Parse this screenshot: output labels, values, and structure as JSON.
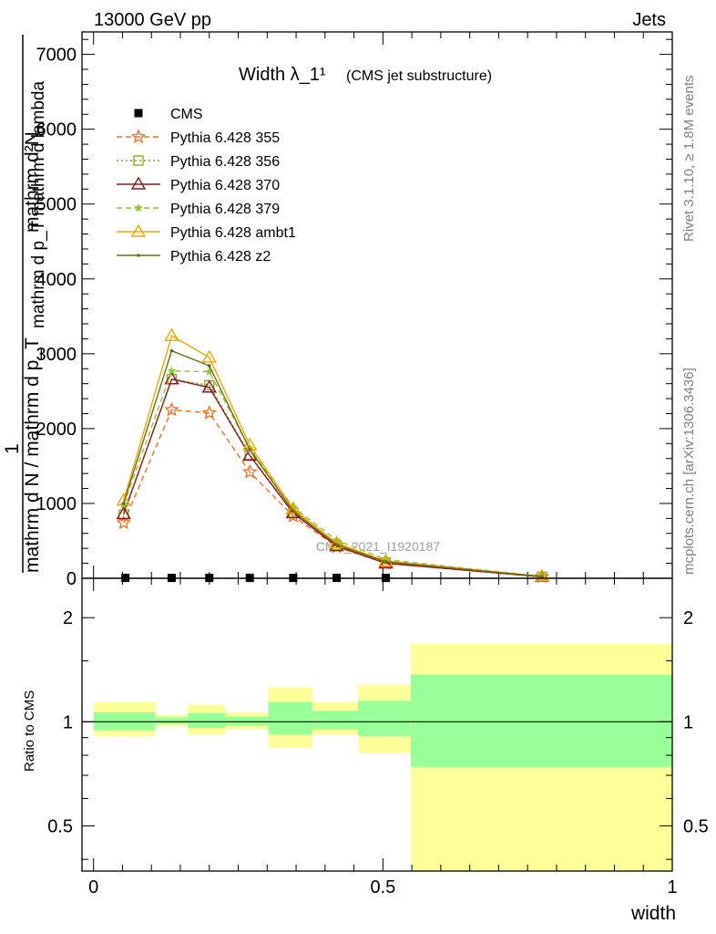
{
  "header": {
    "left": "13000 GeV pp",
    "right": "Jets"
  },
  "side_labels": {
    "rivet": "Rivet 3.1.10, ≥ 1.8M events",
    "mcplots": "mcplots.cern.ch [arXiv:1306.3436]"
  },
  "watermark": "CMS_2021_I1920187",
  "colors": {
    "cms": "#000000",
    "p355": "#f07020",
    "p356": "#8aa020",
    "p370": "#8b1a1a",
    "p379": "#8ac832",
    "ambt1": "#f0a800",
    "z2": "#6b6b10",
    "band_inner": "#99ff99",
    "band_outer": "#ffff99"
  },
  "chart_data": [
    {
      "type": "line",
      "title": "Width λ_1¹",
      "subtitle": "(CMS jet substructure)",
      "ylabel_top": "mathrm d²N",
      "ylabel_mid": "mathrm d p_T mathrm d lambda",
      "ylabel_one": "1",
      "ylabel_bot": "mathrm d N / mathrm d p_T",
      "ylim": [
        0,
        7300
      ],
      "yticks": [
        0,
        1000,
        2000,
        3000,
        4000,
        5000,
        6000,
        7000
      ],
      "ytick_labels": [
        "0",
        "1000",
        "2000",
        "3000",
        "4000",
        "5000",
        "6000",
        "7000"
      ],
      "xlim": [
        -0.02,
        1.0
      ],
      "legend_placement": "top-left",
      "series": [
        {
          "name": "CMS",
          "key": "cms",
          "marker": "square",
          "dash": "",
          "x": [
            0.055,
            0.135,
            0.2,
            0.27,
            0.345,
            0.42,
            0.505
          ],
          "y": [
            5,
            5,
            5,
            5,
            5,
            5,
            5
          ]
        },
        {
          "name": "Pythia 6.428 355",
          "key": "p355",
          "marker": "star-open",
          "dash": "6,4",
          "x": [
            0.052,
            0.135,
            0.2,
            0.27,
            0.345,
            0.42,
            0.505,
            0.775
          ],
          "y": [
            740,
            2250,
            2210,
            1420,
            830,
            420,
            200,
            20
          ]
        },
        {
          "name": "Pythia 6.428 356",
          "key": "p356",
          "marker": "square-open",
          "dash": "2,3",
          "x": [
            0.052,
            0.135,
            0.2,
            0.27,
            0.345,
            0.42,
            0.505,
            0.775
          ],
          "y": [
            850,
            2660,
            2580,
            1650,
            880,
            440,
            210,
            20
          ]
        },
        {
          "name": "Pythia 6.428 370",
          "key": "p370",
          "marker": "triangle-open",
          "dash": "",
          "x": [
            0.052,
            0.135,
            0.2,
            0.27,
            0.345,
            0.42,
            0.505,
            0.775
          ],
          "y": [
            860,
            2660,
            2550,
            1640,
            870,
            430,
            200,
            20
          ]
        },
        {
          "name": "Pythia 6.428 379",
          "key": "p379",
          "marker": "star",
          "dash": "6,4",
          "x": [
            0.052,
            0.135,
            0.2,
            0.27,
            0.345,
            0.42,
            0.505,
            0.775
          ],
          "y": [
            980,
            2770,
            2760,
            1730,
            950,
            510,
            250,
            25
          ]
        },
        {
          "name": "Pythia 6.428 ambt1",
          "key": "ambt1",
          "marker": "triangle-open",
          "dash": "",
          "x": [
            0.052,
            0.135,
            0.2,
            0.27,
            0.345,
            0.42,
            0.505,
            0.775
          ],
          "y": [
            1040,
            3240,
            2950,
            1780,
            930,
            470,
            230,
            25
          ]
        },
        {
          "name": "Pythia 6.428 z2",
          "key": "z2",
          "marker": "dot",
          "dash": "",
          "x": [
            0.052,
            0.135,
            0.2,
            0.27,
            0.345,
            0.42,
            0.505,
            0.775
          ],
          "y": [
            1000,
            3040,
            2840,
            1720,
            900,
            450,
            220,
            22
          ]
        }
      ]
    },
    {
      "type": "area",
      "ylabel": "Ratio to CMS",
      "xlabel": "width",
      "scale": "log",
      "ylim": [
        0.37,
        2.6
      ],
      "yticks": [
        0.5,
        1,
        2
      ],
      "ytick_labels": [
        "0.5",
        "1",
        "2"
      ],
      "xlim": [
        -0.02,
        1.0
      ],
      "xticks": [
        0,
        0.5,
        1
      ],
      "xtick_labels": [
        "0",
        "0.5",
        "1"
      ],
      "reference_line": 1,
      "bins": [
        {
          "lo": 0.0,
          "hi": 0.107,
          "inner": [
            0.945,
            1.065
          ],
          "outer": [
            0.91,
            1.14
          ]
        },
        {
          "lo": 0.107,
          "hi": 0.163,
          "inner": [
            0.985,
            1.03
          ],
          "outer": [
            0.97,
            1.045
          ]
        },
        {
          "lo": 0.163,
          "hi": 0.228,
          "inner": [
            0.96,
            1.06
          ],
          "outer": [
            0.92,
            1.12
          ]
        },
        {
          "lo": 0.228,
          "hi": 0.302,
          "inner": [
            0.975,
            1.035
          ],
          "outer": [
            0.95,
            1.065
          ]
        },
        {
          "lo": 0.302,
          "hi": 0.378,
          "inner": [
            0.92,
            1.14
          ],
          "outer": [
            0.84,
            1.26
          ]
        },
        {
          "lo": 0.378,
          "hi": 0.457,
          "inner": [
            0.95,
            1.075
          ],
          "outer": [
            0.92,
            1.14
          ]
        },
        {
          "lo": 0.457,
          "hi": 0.548,
          "inner": [
            0.91,
            1.15
          ],
          "outer": [
            0.81,
            1.28
          ]
        },
        {
          "lo": 0.548,
          "hi": 1.0,
          "inner": [
            0.74,
            1.37
          ],
          "outer": [
            0.37,
            1.68
          ]
        }
      ]
    }
  ]
}
